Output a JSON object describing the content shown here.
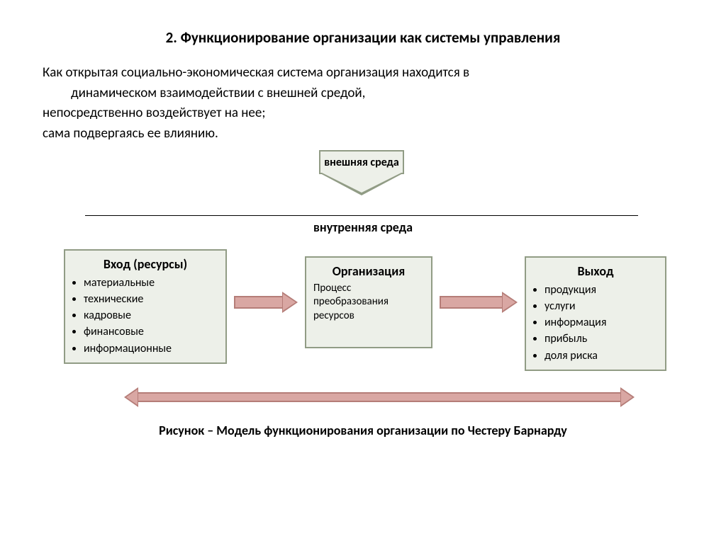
{
  "title": "2. Функционирование организации как системы управления",
  "paragraphs": {
    "p1": "Как открытая социально-экономическая система организация находится в",
    "p1b": "динамическом взаимодействии с внешней средой,",
    "p2": "непосредственно воздействует на нее;",
    "p3": "сама подвергаясь ее влиянию."
  },
  "diagram": {
    "type": "flowchart",
    "colors": {
      "box_fill": "#edf0e9",
      "box_border": "#919c85",
      "arrow_fill": "#d9a7a3",
      "arrow_border": "#b57d78",
      "background": "#ffffff",
      "text": "#000000"
    },
    "fontsizes": {
      "title": 21,
      "body": 19,
      "box_title": 18,
      "list": 16,
      "sub": 15
    },
    "external_env_label": "внешняя среда",
    "internal_env_label": "внутренняя среда",
    "input": {
      "title": "Вход (ресурсы)",
      "items": [
        "материальные",
        "технические",
        "кадровые",
        "финансовые",
        "информационные"
      ]
    },
    "org": {
      "title": "Организация",
      "subtitle": "Процесс преобразования ресурсов"
    },
    "output": {
      "title": "Выход",
      "items": [
        "продукция",
        "услуги",
        "информация",
        "прибыль",
        "доля риска"
      ]
    },
    "edges": [
      {
        "from": "external",
        "to": "internal",
        "style": "down-block-arrow"
      },
      {
        "from": "input",
        "to": "org",
        "style": "right-block-arrow"
      },
      {
        "from": "org",
        "to": "output",
        "style": "right-block-arrow"
      },
      {
        "from": "input",
        "to": "output",
        "style": "double-horizontal-arrow"
      }
    ],
    "caption": "Рисунок – Модель функционирования организации по Честеру Барнарду"
  }
}
